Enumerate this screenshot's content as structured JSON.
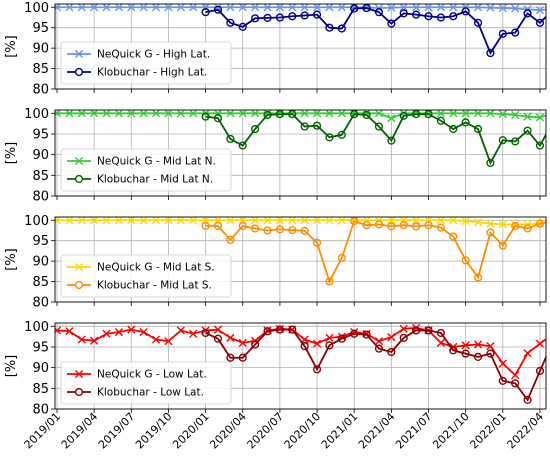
{
  "chart_data": {
    "type": "line",
    "x": [
      "2019/01",
      "2019/02",
      "2019/03",
      "2019/04",
      "2019/05",
      "2019/06",
      "2019/07",
      "2019/08",
      "2019/09",
      "2019/10",
      "2019/11",
      "2019/12",
      "2020/01",
      "2020/02",
      "2020/03",
      "2020/04",
      "2020/05",
      "2020/06",
      "2020/07",
      "2020/08",
      "2020/09",
      "2020/10",
      "2020/11",
      "2020/12",
      "2021/01",
      "2021/02",
      "2021/03",
      "2021/04",
      "2021/05",
      "2021/06",
      "2021/07",
      "2021/08",
      "2021/09",
      "2021/10",
      "2021/11",
      "2021/12",
      "2022/01",
      "2022/02",
      "2022/03",
      "2022/04",
      "2022/05"
    ],
    "xticks": [
      "2019/01",
      "2019/04",
      "2019/07",
      "2019/10",
      "2020/01",
      "2020/04",
      "2020/07",
      "2020/10",
      "2021/01",
      "2021/04",
      "2021/07",
      "2021/10",
      "2022/01",
      "2022/04"
    ],
    "ylabel": "[%]",
    "ylim": [
      80,
      100.8
    ],
    "yticks": [
      80,
      85,
      90,
      95,
      100
    ],
    "grid": true,
    "legend_position": "lower-left",
    "panels": [
      {
        "series": [
          {
            "name": "NeQuick G - High Lat.",
            "color": "#6495ed",
            "marker": "x",
            "values": [
              100,
              100,
              100,
              100,
              100,
              100,
              100,
              100,
              100,
              100,
              100,
              100,
              100,
              100,
              100,
              100,
              100,
              100,
              100,
              100,
              100,
              100,
              100,
              100,
              100,
              100,
              99.8,
              99.9,
              100,
              100,
              100,
              100,
              100,
              100,
              100,
              99.9,
              99.8,
              99.7,
              99.5,
              99.3,
              99.6
            ]
          },
          {
            "name": "Klobuchar - High Lat.",
            "color": "#00008b",
            "marker": "o",
            "values": [
              null,
              null,
              null,
              null,
              null,
              null,
              null,
              null,
              null,
              null,
              null,
              null,
              98.8,
              99.4,
              96.2,
              95.2,
              97.3,
              97.4,
              97.5,
              97.8,
              98.0,
              98.2,
              95.0,
              94.8,
              99.7,
              99.8,
              98.8,
              96.0,
              98.5,
              98.2,
              97.8,
              97.5,
              97.8,
              99.0,
              96.2,
              88.8,
              93.5,
              93.8,
              98.5,
              96.2,
              99.2
            ]
          }
        ]
      },
      {
        "series": [
          {
            "name": "NeQuick G - Mid Lat N.",
            "color": "#32cd32",
            "marker": "x",
            "values": [
              100,
              100,
              100,
              100,
              100,
              100,
              100,
              100,
              100,
              100,
              100,
              100,
              100,
              100,
              100,
              100,
              100,
              100,
              100,
              100,
              100,
              100,
              100,
              100,
              100,
              100,
              100,
              98.8,
              100,
              100,
              100,
              100,
              100,
              100,
              100,
              100,
              99.8,
              99.6,
              99.2,
              99.0,
              100
            ]
          },
          {
            "name": "Klobuchar - Mid Lat N.",
            "color": "#006400",
            "marker": "o",
            "values": [
              null,
              null,
              null,
              null,
              null,
              null,
              null,
              null,
              null,
              null,
              null,
              null,
              99.2,
              98.8,
              93.8,
              92.2,
              96.2,
              99.6,
              99.8,
              99.8,
              96.8,
              97.0,
              94.2,
              94.8,
              99.8,
              99.6,
              96.8,
              93.4,
              99.4,
              99.8,
              99.8,
              98.2,
              96.2,
              97.8,
              96.2,
              88.0,
              93.5,
              93.2,
              95.8,
              92.2,
              97.6
            ]
          }
        ]
      },
      {
        "series": [
          {
            "name": "NeQuick G - Mid Lat S.",
            "color": "#ffd700",
            "marker": "x",
            "values": [
              100,
              100,
              100,
              100,
              100,
              100,
              100,
              100,
              100,
              100,
              100,
              100,
              100,
              100,
              100,
              100,
              100,
              100,
              100,
              100,
              100,
              100,
              100,
              100,
              100,
              100,
              100,
              100,
              100,
              100,
              100,
              100,
              100,
              99.8,
              99.5,
              99.2,
              99.0,
              99.0,
              99.0,
              99.2,
              99.6
            ]
          },
          {
            "name": "Klobuchar - Mid Lat S.",
            "color": "#ff8c00",
            "marker": "o",
            "values": [
              null,
              null,
              null,
              null,
              null,
              null,
              null,
              null,
              null,
              null,
              null,
              null,
              98.6,
              98.6,
              95.2,
              98.6,
              98.0,
              97.5,
              97.8,
              97.6,
              97.4,
              94.5,
              85.0,
              90.8,
              99.8,
              98.8,
              99.0,
              98.5,
              98.8,
              98.5,
              98.8,
              98.2,
              96.0,
              90.2,
              86.0,
              97.0,
              93.8,
              98.6,
              98.0,
              99.2,
              99.8
            ]
          }
        ]
      },
      {
        "series": [
          {
            "name": "NeQuick G - Low Lat.",
            "color": "#ff0000",
            "marker": "x",
            "values": [
              99.0,
              98.8,
              96.8,
              96.5,
              98.2,
              98.6,
              99.2,
              98.6,
              96.8,
              96.4,
              99.0,
              98.2,
              99.0,
              99.2,
              97.2,
              96.0,
              96.5,
              99.0,
              99.4,
              99.2,
              96.8,
              95.8,
              97.2,
              97.5,
              98.6,
              98.2,
              96.4,
              97.4,
              99.4,
              99.6,
              99.0,
              96.0,
              95.0,
              95.4,
              95.6,
              95.2,
              91.0,
              88.2,
              93.5,
              95.8,
              98.0
            ]
          },
          {
            "name": "Klobuchar - Low Lat.",
            "color": "#8b0000",
            "marker": "o",
            "values": [
              null,
              null,
              null,
              null,
              null,
              null,
              null,
              null,
              null,
              null,
              null,
              null,
              98.4,
              97.0,
              92.4,
              92.4,
              95.6,
              98.8,
              99.2,
              99.2,
              95.2,
              89.6,
              95.4,
              97.0,
              98.2,
              98.0,
              94.6,
              93.8,
              97.2,
              99.0,
              99.0,
              98.4,
              94.2,
              93.4,
              92.6,
              93.4,
              86.8,
              86.2,
              82.2,
              89.2,
              96.0
            ]
          }
        ]
      }
    ]
  }
}
